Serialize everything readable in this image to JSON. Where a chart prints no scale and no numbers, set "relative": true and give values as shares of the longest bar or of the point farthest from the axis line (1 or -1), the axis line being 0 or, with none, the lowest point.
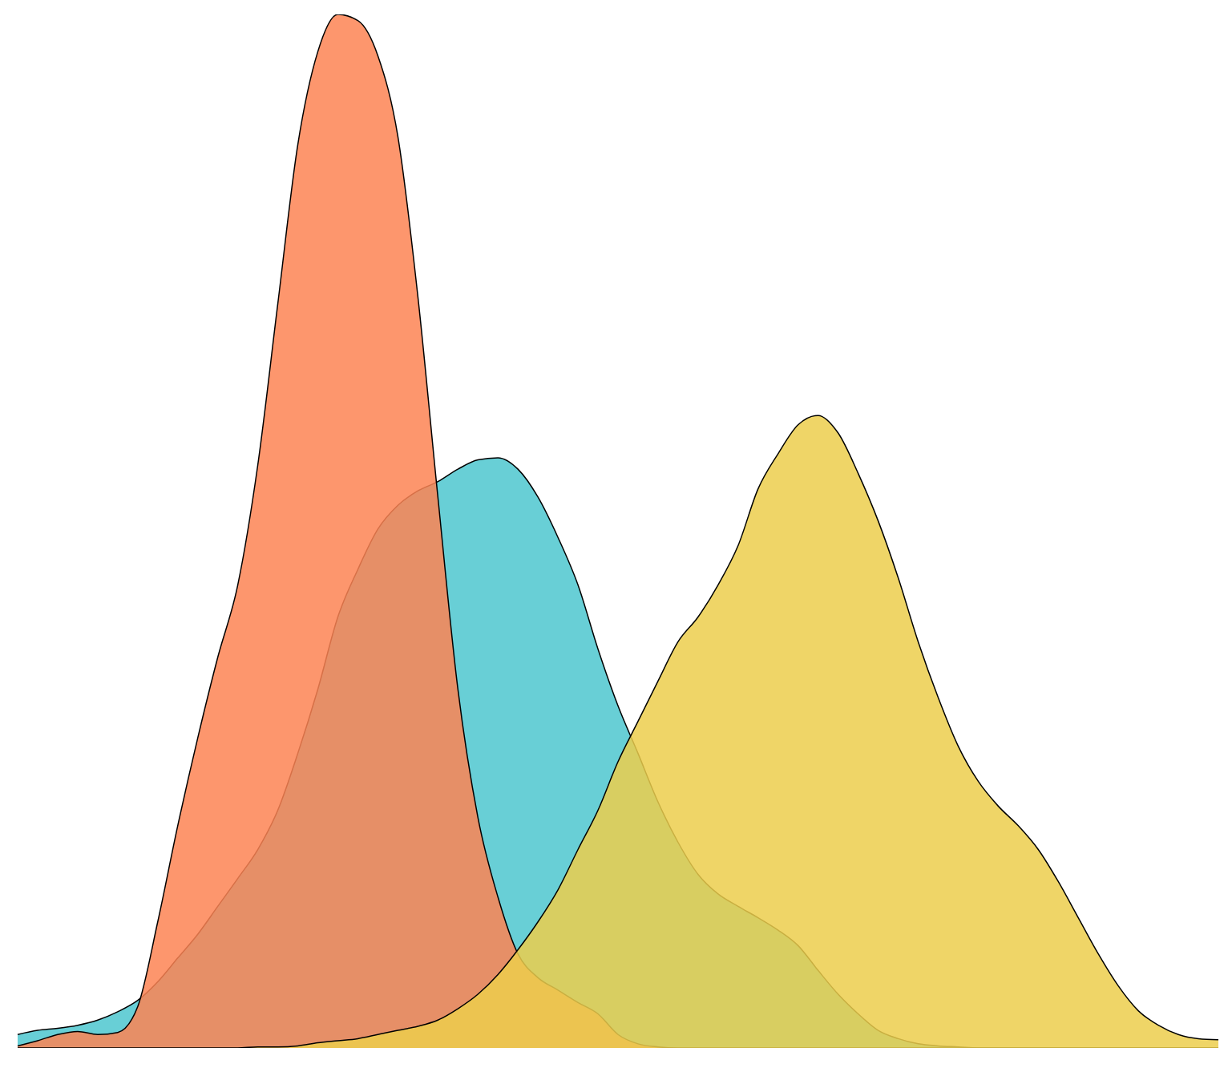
{
  "chart_data": {
    "type": "area",
    "relative": true,
    "categories": [
      null,
      null,
      null,
      null,
      null,
      null,
      null,
      null,
      null,
      null,
      null,
      null,
      null,
      null,
      null,
      null,
      null,
      null,
      null,
      null,
      null,
      null,
      null,
      null,
      null,
      null,
      null,
      null,
      null,
      null,
      null,
      null,
      null,
      null,
      null,
      null,
      null,
      null,
      null,
      null,
      null,
      null,
      null,
      null,
      null,
      null,
      null,
      null,
      null,
      null,
      null,
      null,
      null,
      null,
      null,
      null,
      null,
      null,
      null,
      null,
      null
    ],
    "series": [
      {
        "color": "#4ec7cf",
        "values": [
          0.013,
          0.017,
          0.019,
          0.022,
          0.027,
          0.035,
          0.046,
          0.064,
          0.087,
          0.11,
          0.137,
          0.164,
          0.192,
          0.23,
          0.285,
          0.347,
          0.417,
          0.463,
          0.502,
          0.525,
          0.539,
          0.548,
          0.56,
          0.569,
          0.571,
          0.56,
          0.533,
          0.494,
          0.448,
          0.386,
          0.331,
          0.285,
          0.238,
          0.199,
          0.168,
          0.149,
          0.137,
          0.126,
          0.114,
          0.099,
          0.075,
          0.052,
          0.033,
          0.017,
          0.009,
          0.004,
          0.002,
          0.001,
          0,
          0,
          0,
          0,
          0,
          0,
          0,
          0,
          0,
          0,
          0,
          0,
          0
        ]
      },
      {
        "color": "#fd8454",
        "values": [
          0.002,
          0.007,
          0.013,
          0.016,
          0.013,
          0.015,
          0.04,
          0.122,
          0.215,
          0.3,
          0.378,
          0.448,
          0.564,
          0.72,
          0.874,
          0.964,
          1,
          0.994,
          0.96,
          0.882,
          0.727,
          0.533,
          0.347,
          0.223,
          0.146,
          0.091,
          0.068,
          0.056,
          0.044,
          0.033,
          0.013,
          0.004,
          0.001,
          0,
          0,
          0,
          0,
          0,
          0,
          0,
          0,
          0,
          0,
          0,
          0,
          0,
          0,
          0,
          0,
          0,
          0,
          0,
          0,
          0,
          0,
          0,
          0,
          0,
          0,
          0,
          0
        ]
      },
      {
        "color": "#ecce4c",
        "values": [
          0,
          0,
          0,
          0,
          0,
          0,
          0,
          0,
          0,
          0,
          0,
          0,
          0.001,
          0.001,
          0.002,
          0.005,
          0.007,
          0.009,
          0.013,
          0.017,
          0.021,
          0.027,
          0.038,
          0.052,
          0.071,
          0.095,
          0.122,
          0.153,
          0.192,
          0.23,
          0.277,
          0.316,
          0.355,
          0.393,
          0.417,
          0.448,
          0.486,
          0.541,
          0.575,
          0.603,
          0.612,
          0.595,
          0.556,
          0.51,
          0.455,
          0.393,
          0.339,
          0.292,
          0.258,
          0.234,
          0.215,
          0.192,
          0.161,
          0.126,
          0.091,
          0.06,
          0.036,
          0.022,
          0.013,
          0.009,
          0.008
        ]
      }
    ]
  }
}
